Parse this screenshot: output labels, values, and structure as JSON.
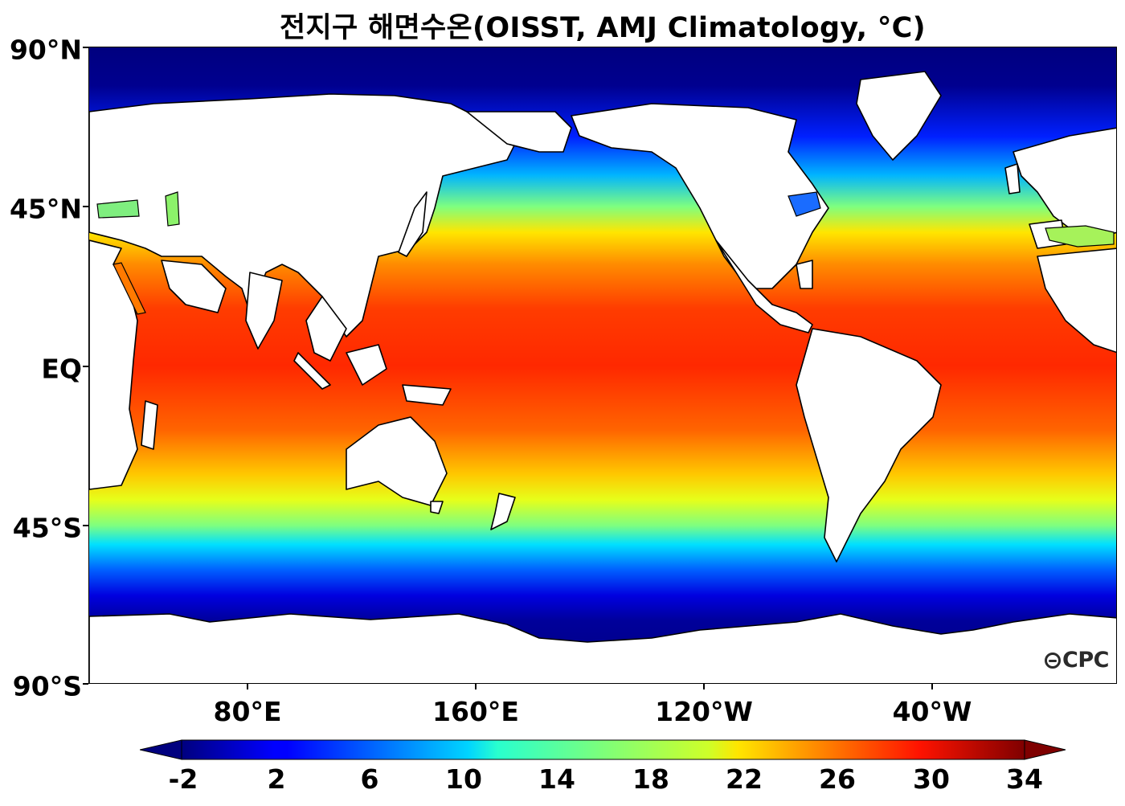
{
  "title": "전지구 해면수온(OISST, AMJ Climatology, °C)",
  "map": {
    "projection": "equirectangular",
    "central_longitude": "Pacific-centered (Greenwich ~ left edge region)",
    "variable": "Sea surface temperature",
    "season": "AMJ",
    "latitude_labels": [
      {
        "text": "90°N",
        "lat": 90
      },
      {
        "text": "45°N",
        "lat": 45
      },
      {
        "text": "EQ",
        "lat": 0
      },
      {
        "text": "45°S",
        "lat": -45
      },
      {
        "text": "90°S",
        "lat": -90
      }
    ],
    "longitude_labels": [
      {
        "text": "80°E",
        "lon": 80
      },
      {
        "text": "160°E",
        "lon": 160
      },
      {
        "text": "120°W",
        "lon": -120
      },
      {
        "text": "40°W",
        "lon": -40
      }
    ],
    "land_color": "#ffffff",
    "coastline_color": "#000000"
  },
  "colorbar": {
    "colormap": "jet",
    "min": -2,
    "max": 34,
    "extend": "both",
    "tick_labels": [
      "-2",
      "2",
      "6",
      "10",
      "14",
      "18",
      "22",
      "26",
      "30",
      "34"
    ]
  },
  "logo": {
    "text": "CPC",
    "icon": "globe-logo-icon"
  }
}
